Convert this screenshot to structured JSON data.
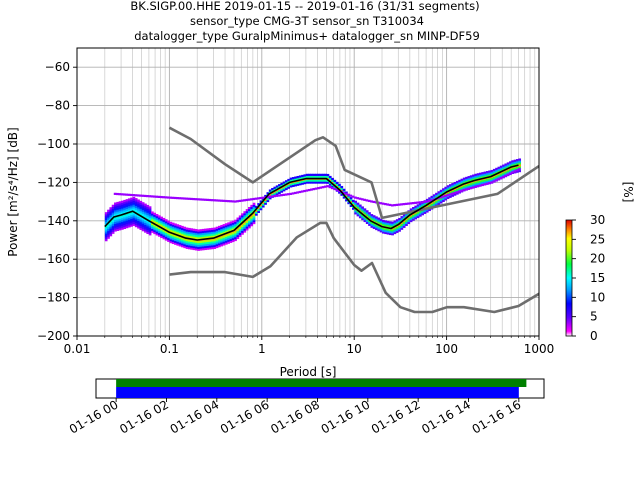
{
  "title": {
    "line1": "BK.SIGP.00.HHE   2019-01-15 -- 2019-01-16  (31/31 segments)",
    "line2": "sensor_type CMG-3T sensor_sn T310034",
    "line3": "datalogger_type GuralpMinimus+ datalogger_sn MINP-DF59"
  },
  "chart_data": {
    "type": "heatmap",
    "xlabel": "Period [s]",
    "ylabel": "Power [m²/s⁴/Hz] [dB]",
    "x_scale": "log",
    "xlim": [
      0.01,
      1000
    ],
    "ylim": [
      -200,
      -50
    ],
    "x_ticks": [
      {
        "value": 0.01,
        "label": "0.01"
      },
      {
        "value": 0.1,
        "label": "0.1"
      },
      {
        "value": 1,
        "label": "1"
      },
      {
        "value": 10,
        "label": "10"
      },
      {
        "value": 100,
        "label": "100"
      },
      {
        "value": 1000,
        "label": "1000"
      }
    ],
    "y_ticks": [
      -60,
      -80,
      -100,
      -120,
      -140,
      -160,
      -180,
      -200
    ],
    "grid": true,
    "noise_models": [
      {
        "points": [
          [
            0.1,
            -91.5
          ],
          [
            0.17,
            -97.4
          ],
          [
            0.4,
            -110.5
          ],
          [
            0.8,
            -120
          ],
          [
            3.8,
            -98
          ],
          [
            4.6,
            -96.5
          ],
          [
            6.3,
            -101
          ],
          [
            7.9,
            -113.5
          ],
          [
            15.4,
            -120
          ],
          [
            20,
            -138.5
          ],
          [
            354.8,
            -126
          ],
          [
            1000,
            -111.5
          ]
        ]
      },
      {
        "points": [
          [
            0.1,
            -168
          ],
          [
            0.17,
            -166.7
          ],
          [
            0.4,
            -166.7
          ],
          [
            0.8,
            -169.2
          ],
          [
            1.24,
            -163.7
          ],
          [
            2.4,
            -148.6
          ],
          [
            4.3,
            -141.1
          ],
          [
            5,
            -141.1
          ],
          [
            6,
            -149
          ],
          [
            10,
            -163
          ],
          [
            12,
            -166
          ],
          [
            15.6,
            -162
          ],
          [
            21.9,
            -177.5
          ],
          [
            31.6,
            -185
          ],
          [
            45,
            -187.5
          ],
          [
            70,
            -187.5
          ],
          [
            101,
            -185
          ],
          [
            154,
            -185
          ],
          [
            328,
            -187.5
          ],
          [
            600,
            -184.4
          ],
          [
            1000,
            -178
          ]
        ]
      }
    ],
    "median": [
      [
        0.02,
        -143
      ],
      [
        0.025,
        -138
      ],
      [
        0.03,
        -137
      ],
      [
        0.04,
        -135
      ],
      [
        0.06,
        -140
      ],
      [
        0.1,
        -146
      ],
      [
        0.15,
        -149
      ],
      [
        0.2,
        -150
      ],
      [
        0.3,
        -149
      ],
      [
        0.5,
        -145
      ],
      [
        0.8,
        -136
      ],
      [
        1.2,
        -126
      ],
      [
        2,
        -120
      ],
      [
        3,
        -118
      ],
      [
        5,
        -118
      ],
      [
        7,
        -124
      ],
      [
        10,
        -133
      ],
      [
        15,
        -140
      ],
      [
        20,
        -143
      ],
      [
        25,
        -144
      ],
      [
        30,
        -142
      ],
      [
        40,
        -137
      ],
      [
        60,
        -132
      ],
      [
        100,
        -125
      ],
      [
        150,
        -121
      ],
      [
        200,
        -119
      ],
      [
        300,
        -117
      ],
      [
        500,
        -112
      ],
      [
        600,
        -111
      ]
    ],
    "mode_line": [
      [
        0.025,
        -126
      ],
      [
        0.1,
        -128
      ],
      [
        0.5,
        -130
      ],
      [
        2,
        -126
      ],
      [
        5,
        -122
      ],
      [
        10,
        -128
      ],
      [
        15,
        -130
      ],
      [
        25,
        -132
      ],
      [
        60,
        -130
      ],
      [
        150,
        -124
      ],
      [
        300,
        -120
      ],
      [
        600,
        -113
      ]
    ],
    "colorbar": {
      "label": "[%]",
      "range": [
        0,
        30
      ],
      "ticks": [
        0,
        5,
        10,
        15,
        20,
        25,
        30
      ]
    },
    "coverage": {
      "ticks": [
        "01-16 00",
        "01-16 02",
        "01-16 04",
        "01-16 06",
        "01-16 08",
        "01-16 10",
        "01-16 12",
        "01-16 14",
        "01-16 16"
      ],
      "range_hours": [
        -0.8,
        17
      ],
      "green_hours": [
        0,
        16.3
      ],
      "blue_hours": [
        0,
        16
      ]
    },
    "colors": {
      "noise_model": "#6e6e6e",
      "median": "#000000",
      "coverage_green": "#008000",
      "coverage_blue": "#0000ff"
    }
  }
}
